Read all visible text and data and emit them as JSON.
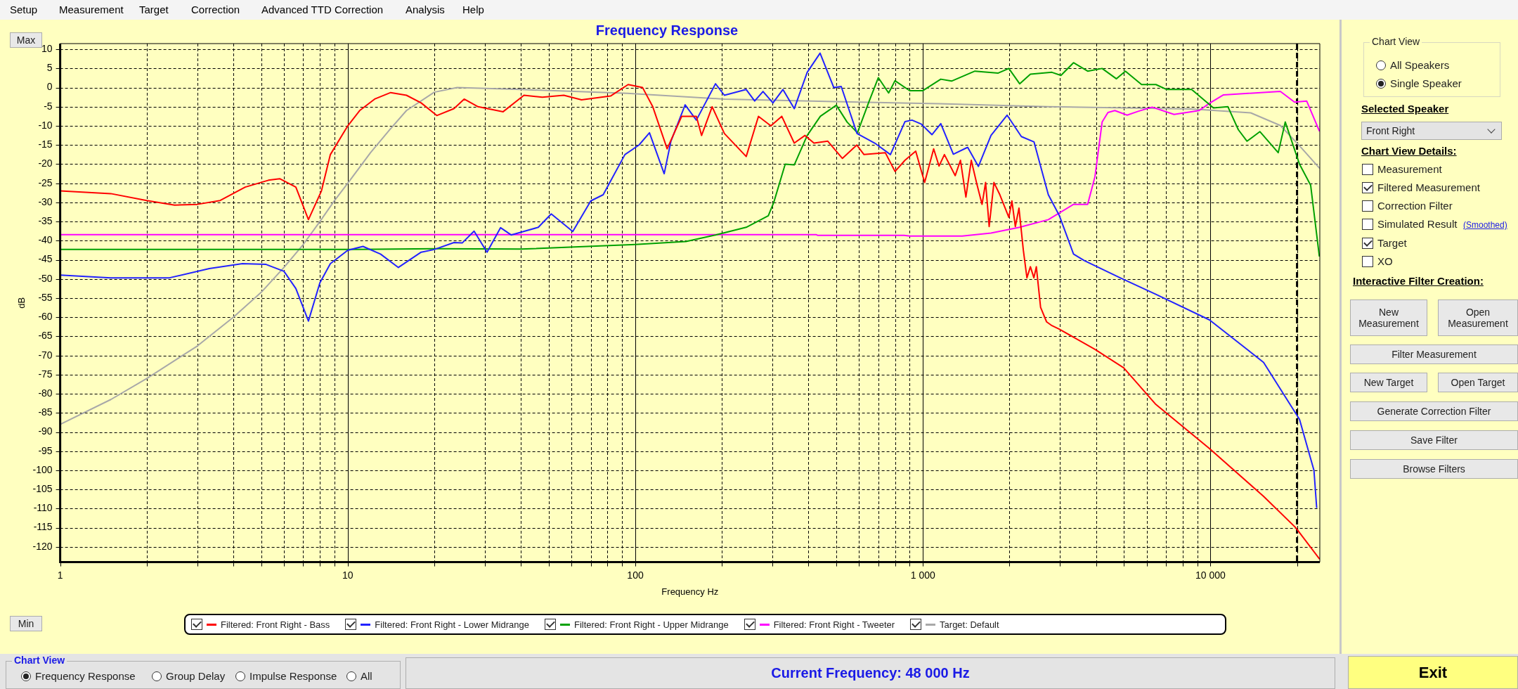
{
  "chart_data": [
    {
      "type": "line",
      "title": "Frequency Response",
      "xlabel": "Frequency Hz",
      "ylabel": "dB",
      "log": "x",
      "grid": true,
      "legend": "bottom",
      "marker": "none",
      "xlim": [
        1,
        24000
      ],
      "ylim": [
        -124,
        11.5
      ],
      "xticks": [
        1,
        {
          "value": 2,
          "label": null
        },
        {
          "value": 3,
          "label": null
        },
        {
          "value": 4,
          "label": null
        },
        {
          "value": 5,
          "label": null
        },
        {
          "value": 6,
          "label": null
        },
        {
          "value": 7,
          "label": null
        },
        {
          "value": 8,
          "label": null
        },
        {
          "value": 9,
          "label": null
        },
        10,
        {
          "value": 20,
          "label": null
        },
        {
          "value": 30,
          "label": null
        },
        {
          "value": 40,
          "label": null
        },
        {
          "value": 50,
          "label": null
        },
        {
          "value": 60,
          "label": null
        },
        {
          "value": 70,
          "label": null
        },
        {
          "value": 80,
          "label": null
        },
        {
          "value": 90,
          "label": null
        },
        100,
        {
          "value": 200,
          "label": null
        },
        {
          "value": 300,
          "label": null
        },
        {
          "value": 400,
          "label": null
        },
        {
          "value": 500,
          "label": null
        },
        {
          "value": 600,
          "label": null
        },
        {
          "value": 700,
          "label": null
        },
        {
          "value": 800,
          "label": null
        },
        {
          "value": 900,
          "label": null
        },
        {
          "value": 1000,
          "label": "1 000"
        },
        {
          "value": 2000,
          "label": null
        },
        {
          "value": 3000,
          "label": null
        },
        {
          "value": 4000,
          "label": null
        },
        {
          "value": 5000,
          "label": null
        },
        {
          "value": 6000,
          "label": null
        },
        {
          "value": 7000,
          "label": null
        },
        {
          "value": 8000,
          "label": null
        },
        {
          "value": 9000,
          "label": null
        },
        {
          "value": 10000,
          "label": "10 000"
        },
        {
          "value": 20000,
          "label": null
        }
      ],
      "yticks": [
        -120,
        -115,
        -110,
        -105,
        -100,
        -95,
        -90,
        -85,
        -80,
        -75,
        -70,
        -65,
        -60,
        -55,
        -50,
        -45,
        -40,
        -35,
        -30,
        -25,
        -20,
        -15,
        -10,
        -5,
        0,
        5,
        10
      ],
      "ref_lines": [
        {
          "axis": "x",
          "value": 20000,
          "line_style": "dashed"
        }
      ],
      "series": [
        {
          "name": "Filtered: Front Right - Bass",
          "color": "#ff0000",
          "x": [
            1,
            1.5,
            2,
            2.5,
            3,
            3.6,
            4.4,
            5.3,
            5.8,
            6.6,
            7.3,
            8.1,
            8.7,
            10,
            11,
            12.4,
            14.1,
            16,
            18,
            20.4,
            23.4,
            25.4,
            28.4,
            34.7,
            41,
            47.5,
            56.4,
            65,
            82,
            94.4,
            106,
            115,
            129,
            145,
            163,
            170,
            185,
            204,
            243,
            268,
            296,
            323,
            357,
            389,
            418,
            467,
            525,
            589,
            624,
            740,
            800,
            866,
            944,
            1014,
            1090,
            1138,
            1188,
            1295,
            1351,
            1411,
            1473,
            1538,
            1606,
            1652,
            1700,
            1766,
            1852,
            1990,
            2039,
            2096,
            2158,
            2235,
            2300,
            2365,
            2432,
            2480,
            2566,
            2692,
            2810,
            2979,
            3965,
            4990,
            6460,
            9920,
            15300,
            19800,
            23900
          ],
          "values": [
            -27,
            -27.7,
            -29.5,
            -30.7,
            -30.5,
            -29.5,
            -26,
            -24.2,
            -23.8,
            -26,
            -34.5,
            -27,
            -17.5,
            -10,
            -6,
            -3,
            -1.3,
            -2,
            -4,
            -7.3,
            -5.5,
            -3,
            -5,
            -6.3,
            -2,
            -2.5,
            -2,
            -3.2,
            -2.2,
            0.8,
            0,
            -5,
            -16,
            -7.5,
            -7.5,
            -12.5,
            -5,
            -12,
            -18,
            -7.5,
            -10,
            -7.5,
            -14.5,
            -12.5,
            -14.5,
            -14,
            -18.5,
            -15,
            -17.5,
            -17,
            -21.9,
            -19,
            -16.6,
            -24.8,
            -16,
            -20.5,
            -17.5,
            -23,
            -19,
            -28.6,
            -19,
            -25,
            -30.5,
            -24.8,
            -36.3,
            -24.8,
            -28,
            -33.9,
            -29.6,
            -36.3,
            -31.5,
            -42.5,
            -49.7,
            -46.8,
            -49.7,
            -46.8,
            -57.4,
            -61.2,
            -62.2,
            -63.1,
            -68.4,
            -73.2,
            -82.8,
            -94.3,
            -106.8,
            -115,
            -123.1
          ]
        },
        {
          "name": "Filtered: Front Right - Lower Midrange",
          "color": "#2222ff",
          "x": [
            1,
            1.5,
            2.4,
            3.3,
            4.3,
            5.2,
            6,
            6.6,
            7.3,
            8,
            8.7,
            10,
            11.3,
            13,
            15,
            18,
            20,
            23.4,
            25,
            27.5,
            30.5,
            34,
            37,
            46,
            51,
            60.6,
            70,
            77.3,
            92,
            103,
            112,
            126,
            133,
            149,
            163,
            190,
            204,
            243,
            260,
            278,
            301,
            326,
            357,
            396,
            439,
            490,
            520,
            590,
            680,
            771,
            866,
            917,
            986,
            1075,
            1154,
            1276,
            1431,
            1560,
            1725,
            1962,
            2200,
            2435,
            2730,
            2980,
            3340,
            3640,
            4850,
            6460,
            9920,
            15300,
            20400,
            22900,
            23400
          ],
          "values": [
            -49,
            -49.7,
            -49.7,
            -47.3,
            -46,
            -46.2,
            -48,
            -52.5,
            -61,
            -51,
            -46,
            -42.5,
            -41.5,
            -43.5,
            -47,
            -43,
            -42.3,
            -40.5,
            -40.6,
            -37.5,
            -43,
            -36.6,
            -38.5,
            -36.5,
            -33,
            -37.6,
            -29.6,
            -28,
            -17.5,
            -15,
            -11.8,
            -22.5,
            -14,
            -4.5,
            -8.5,
            1,
            -2,
            -0.5,
            -3.5,
            -1,
            -4,
            -0.5,
            -5.5,
            4,
            9,
            0,
            0.3,
            -12,
            -14.5,
            -17.5,
            -8.9,
            -8.5,
            -9.5,
            -12.3,
            -9.4,
            -17.4,
            -15.6,
            -20.6,
            -12.5,
            -7.2,
            -12.8,
            -14.2,
            -28,
            -33.4,
            -43.5,
            -45.2,
            -49.7,
            -54,
            -60.7,
            -71.8,
            -86.7,
            -100,
            -109.7
          ]
        },
        {
          "name": "Filtered: Front Right - Upper Midrange",
          "color": "#00a000",
          "x": [
            1,
            10,
            20,
            40,
            100,
            150,
            190,
            243,
            290,
            303,
            332,
            357,
            396,
            440,
            500,
            545,
            592,
            650,
            700,
            760,
            800,
            900,
            1000,
            1154,
            1258,
            1516,
            1828,
            1990,
            2170,
            2365,
            2810,
            3020,
            3340,
            3740,
            4200,
            4710,
            5060,
            5760,
            6460,
            7050,
            8600,
            10240,
            11500,
            12500,
            13400,
            14850,
            17200,
            18200,
            20400,
            22300,
            23900
          ],
          "values": [
            -42.3,
            -42.3,
            -42.1,
            -42.2,
            -41,
            -40.2,
            -38.5,
            -36.5,
            -33.5,
            -30,
            -20,
            -20.2,
            -12.5,
            -7.5,
            -4.6,
            -9,
            -11.8,
            -3.6,
            2.6,
            -1.4,
            1.8,
            -0.8,
            -0.8,
            2.2,
            1.7,
            4.3,
            3.8,
            5,
            1,
            3.5,
            4,
            3.2,
            6.5,
            4.3,
            5,
            2.3,
            4.3,
            0.8,
            0.8,
            -0.5,
            -0.5,
            -5.3,
            -5,
            -11,
            -14,
            -11.5,
            -17,
            -9,
            -20,
            -25.5,
            -44
          ]
        },
        {
          "name": "Filtered: Front Right - Tweeter",
          "color": "#ff00ff",
          "x": [
            1,
            425,
            430,
            860,
            900,
            1370,
            1725,
            2170,
            2730,
            3340,
            3740,
            3965,
            4200,
            4400,
            4650,
            5130,
            5600,
            6270,
            7470,
            9130,
            9920,
            11100,
            17500,
            19600,
            21600,
            23900
          ],
          "values": [
            -38.4,
            -38.4,
            -38.6,
            -38.6,
            -38.8,
            -38.8,
            -38,
            -36.5,
            -34.5,
            -30.5,
            -30.5,
            -23.3,
            -9,
            -6.5,
            -6,
            -7.2,
            -6.2,
            -5.1,
            -7,
            -6,
            -4.1,
            -1.9,
            -1,
            -3.8,
            -3.5,
            -11.3
          ]
        },
        {
          "name": "Target: Default",
          "color": "#a8a8a8",
          "x": [
            1,
            1.5,
            2,
            3,
            4,
            5,
            6,
            7,
            8,
            9,
            10,
            12,
            14,
            16,
            20,
            24,
            40,
            94,
            204,
            525,
            1140,
            2730,
            8600,
            13800,
            17500,
            20400,
            23900
          ],
          "values": [
            -88,
            -81.5,
            -76,
            -67.5,
            -60,
            -53.5,
            -47,
            -41,
            -35,
            -29.5,
            -25,
            -17,
            -11,
            -6,
            -1.2,
            0,
            -0.5,
            -1.5,
            -3,
            -3.7,
            -4.2,
            -5,
            -5.6,
            -6.6,
            -9.9,
            -15.2,
            -21
          ]
        }
      ]
    },
    {
      "type": "other",
      "annotations": [
        "Setup",
        "Measurement",
        "Target",
        "Correction",
        "Advanced TTD Correction",
        "Analysis",
        "Help",
        "Max",
        "Min",
        "Chart View",
        "All Speakers",
        "Single Speaker",
        "Selected Speaker",
        "Front Right",
        "Chart View Details:",
        "Measurement",
        "Filtered Measurement",
        "Correction Filter",
        "Simulated Result",
        "(Smoothed)",
        "Target",
        "XO",
        "Interactive Filter Creation:",
        "New Measurement",
        "Open Measurement",
        "Filter Measurement",
        "New Target",
        "Open Target",
        "Generate Correction Filter",
        "Save Filter",
        "Browse Filters",
        "Chart View",
        "Frequency Response",
        "Group Delay",
        "Impulse Response",
        "All",
        "Current Frequency: 48 000 Hz",
        "Exit"
      ]
    }
  ]
}
